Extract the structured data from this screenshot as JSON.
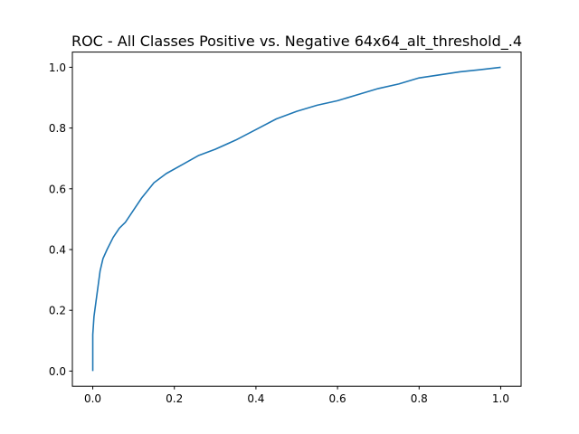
{
  "chart_data": {
    "type": "line",
    "title": "ROC - All Classes Positive vs. Negative 64x64_alt_threshold_.4",
    "xlabel": "",
    "ylabel": "",
    "xlim": [
      -0.05,
      1.05
    ],
    "ylim": [
      -0.05,
      1.05
    ],
    "x_ticks": [
      "0.0",
      "0.2",
      "0.4",
      "0.6",
      "0.8",
      "1.0"
    ],
    "y_ticks": [
      "0.0",
      "0.2",
      "0.4",
      "0.6",
      "0.8",
      "1.0"
    ],
    "grid": false,
    "series": [
      {
        "color": "#1f77b4",
        "x": [
          0.0,
          0.0,
          0.003,
          0.008,
          0.013,
          0.018,
          0.025,
          0.035,
          0.05,
          0.065,
          0.08,
          0.1,
          0.12,
          0.15,
          0.18,
          0.22,
          0.26,
          0.3,
          0.35,
          0.4,
          0.45,
          0.5,
          0.55,
          0.6,
          0.65,
          0.7,
          0.75,
          0.8,
          0.85,
          0.9,
          0.95,
          1.0
        ],
        "y": [
          0.0,
          0.12,
          0.18,
          0.23,
          0.28,
          0.33,
          0.37,
          0.4,
          0.44,
          0.47,
          0.49,
          0.53,
          0.57,
          0.62,
          0.65,
          0.68,
          0.71,
          0.73,
          0.76,
          0.795,
          0.83,
          0.855,
          0.875,
          0.89,
          0.91,
          0.93,
          0.945,
          0.965,
          0.975,
          0.985,
          0.992,
          1.0
        ]
      }
    ]
  }
}
